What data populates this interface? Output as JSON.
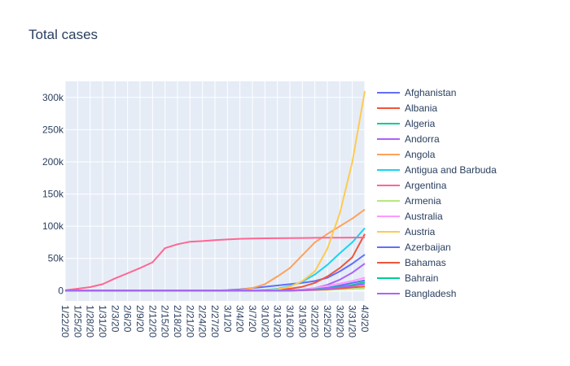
{
  "chart_data": {
    "type": "line",
    "title": "Total cases",
    "xlabel": "",
    "ylabel": "",
    "ylim": [
      -16000,
      325000
    ],
    "grid": true,
    "legend_placement": "right",
    "x": [
      "1/22/20",
      "1/25/20",
      "1/28/20",
      "1/31/20",
      "2/3/20",
      "2/6/20",
      "2/9/20",
      "2/12/20",
      "2/15/20",
      "2/18/20",
      "2/21/20",
      "2/24/20",
      "2/27/20",
      "3/1/20",
      "3/4/20",
      "3/7/20",
      "3/10/20",
      "3/13/20",
      "3/16/20",
      "3/19/20",
      "3/22/20",
      "3/25/20",
      "3/28/20",
      "3/31/20",
      "4/3/20"
    ],
    "x_ticks": [
      "1/22/20",
      "1/25/20",
      "1/28/20",
      "1/31/20",
      "2/3/20",
      "2/6/20",
      "2/9/20",
      "2/12/20",
      "2/15/20",
      "2/18/20",
      "2/21/20",
      "2/24/20",
      "2/27/20",
      "3/1/20",
      "3/4/20",
      "3/7/20",
      "3/10/20",
      "3/13/20",
      "3/16/20",
      "3/19/20",
      "3/22/20",
      "3/25/20",
      "3/28/20",
      "3/31/20",
      "4/3/20"
    ],
    "y_ticks": [
      0,
      50000,
      100000,
      150000,
      200000,
      250000,
      300000
    ],
    "y_tick_labels": [
      "0",
      "50k",
      "100k",
      "150k",
      "200k",
      "250k",
      "300k"
    ],
    "series": [
      {
        "name": "Afghanistan",
        "color": "#636efa",
        "values": [
          0,
          0,
          0,
          0,
          0,
          0,
          0,
          0,
          0,
          0,
          0,
          0,
          100,
          800,
          2000,
          4000,
          6000,
          8000,
          10000,
          12000,
          15000,
          20000,
          30000,
          42000,
          56000
        ]
      },
      {
        "name": "Albania",
        "color": "#ef553b",
        "values": [
          0,
          0,
          0,
          0,
          0,
          0,
          0,
          0,
          0,
          0,
          0,
          0,
          0,
          0,
          0,
          0,
          500,
          1500,
          3000,
          6000,
          12000,
          22000,
          35000,
          52000,
          88000
        ]
      },
      {
        "name": "Algeria",
        "color": "#00cc96",
        "values": [
          0,
          0,
          0,
          0,
          0,
          0,
          0,
          0,
          0,
          0,
          0,
          0,
          0,
          0,
          0,
          0,
          0,
          0,
          200,
          600,
          1500,
          3000,
          5500,
          9000,
          13000
        ]
      },
      {
        "name": "Andorra",
        "color": "#ab63fa",
        "values": [
          0,
          0,
          0,
          0,
          0,
          0,
          0,
          0,
          0,
          0,
          0,
          0,
          0,
          0,
          0,
          0,
          0,
          0,
          500,
          1500,
          4000,
          9000,
          17000,
          28000,
          42000
        ]
      },
      {
        "name": "Angola",
        "color": "#ffa15a",
        "values": [
          0,
          0,
          0,
          0,
          0,
          0,
          0,
          0,
          0,
          0,
          0,
          0,
          0,
          0,
          1000,
          4000,
          10000,
          22000,
          35000,
          55000,
          75000,
          88000,
          100000,
          112000,
          126000
        ]
      },
      {
        "name": "Antigua and Barbuda",
        "color": "#19d3f3",
        "values": [
          0,
          0,
          0,
          0,
          0,
          0,
          0,
          0,
          0,
          0,
          0,
          0,
          0,
          0,
          0,
          0,
          1000,
          3000,
          7000,
          14000,
          25000,
          40000,
          58000,
          75000,
          97000
        ]
      },
      {
        "name": "Argentina",
        "color": "#ff6692",
        "values": [
          500,
          3000,
          5500,
          10000,
          19000,
          27000,
          35000,
          44000,
          66000,
          72000,
          76000,
          77000,
          78500,
          79500,
          80500,
          81000,
          81200,
          81400,
          81600,
          81800,
          82000,
          82100,
          82300,
          82400,
          82500
        ]
      },
      {
        "name": "Armenia",
        "color": "#b6e880",
        "values": [
          0,
          0,
          0,
          0,
          0,
          0,
          0,
          0,
          0,
          0,
          0,
          0,
          0,
          0,
          0,
          0,
          0,
          0,
          100,
          300,
          700,
          1200,
          1800,
          2500,
          3500
        ]
      },
      {
        "name": "Australia",
        "color": "#ff97ff",
        "values": [
          0,
          0,
          0,
          0,
          0,
          0,
          0,
          0,
          0,
          0,
          0,
          0,
          0,
          0,
          0,
          0,
          0,
          0,
          300,
          1500,
          4000,
          7500,
          11000,
          15000,
          20000
        ]
      },
      {
        "name": "Austria",
        "color": "#fecb52",
        "values": [
          0,
          0,
          0,
          0,
          0,
          0,
          0,
          0,
          0,
          0,
          0,
          0,
          0,
          0,
          0,
          0,
          500,
          2000,
          6000,
          15000,
          30000,
          65000,
          120000,
          200000,
          310000
        ]
      },
      {
        "name": "Azerbaijan",
        "color": "#636efa",
        "values": [
          0,
          0,
          0,
          0,
          0,
          0,
          0,
          0,
          0,
          0,
          0,
          0,
          0,
          0,
          0,
          0,
          0,
          100,
          300,
          800,
          2000,
          4500,
          8000,
          12000,
          16000
        ]
      },
      {
        "name": "Bahamas",
        "color": "#ef553b",
        "values": [
          0,
          0,
          0,
          0,
          0,
          0,
          0,
          0,
          0,
          0,
          0,
          0,
          0,
          0,
          0,
          0,
          0,
          0,
          100,
          400,
          1000,
          2000,
          3500,
          5000,
          6500
        ]
      },
      {
        "name": "Bahrain",
        "color": "#00cc96",
        "values": [
          0,
          0,
          0,
          0,
          0,
          0,
          0,
          0,
          0,
          0,
          0,
          0,
          0,
          0,
          0,
          0,
          0,
          0,
          200,
          800,
          2000,
          4000,
          6000,
          8000,
          10000
        ]
      },
      {
        "name": "Bangladesh",
        "color": "#ab63fa",
        "values": [
          0,
          0,
          0,
          0,
          0,
          0,
          0,
          0,
          0,
          0,
          0,
          0,
          0,
          0,
          0,
          0,
          0,
          0,
          100,
          500,
          1500,
          3000,
          5000,
          7500,
          10000
        ]
      }
    ]
  }
}
